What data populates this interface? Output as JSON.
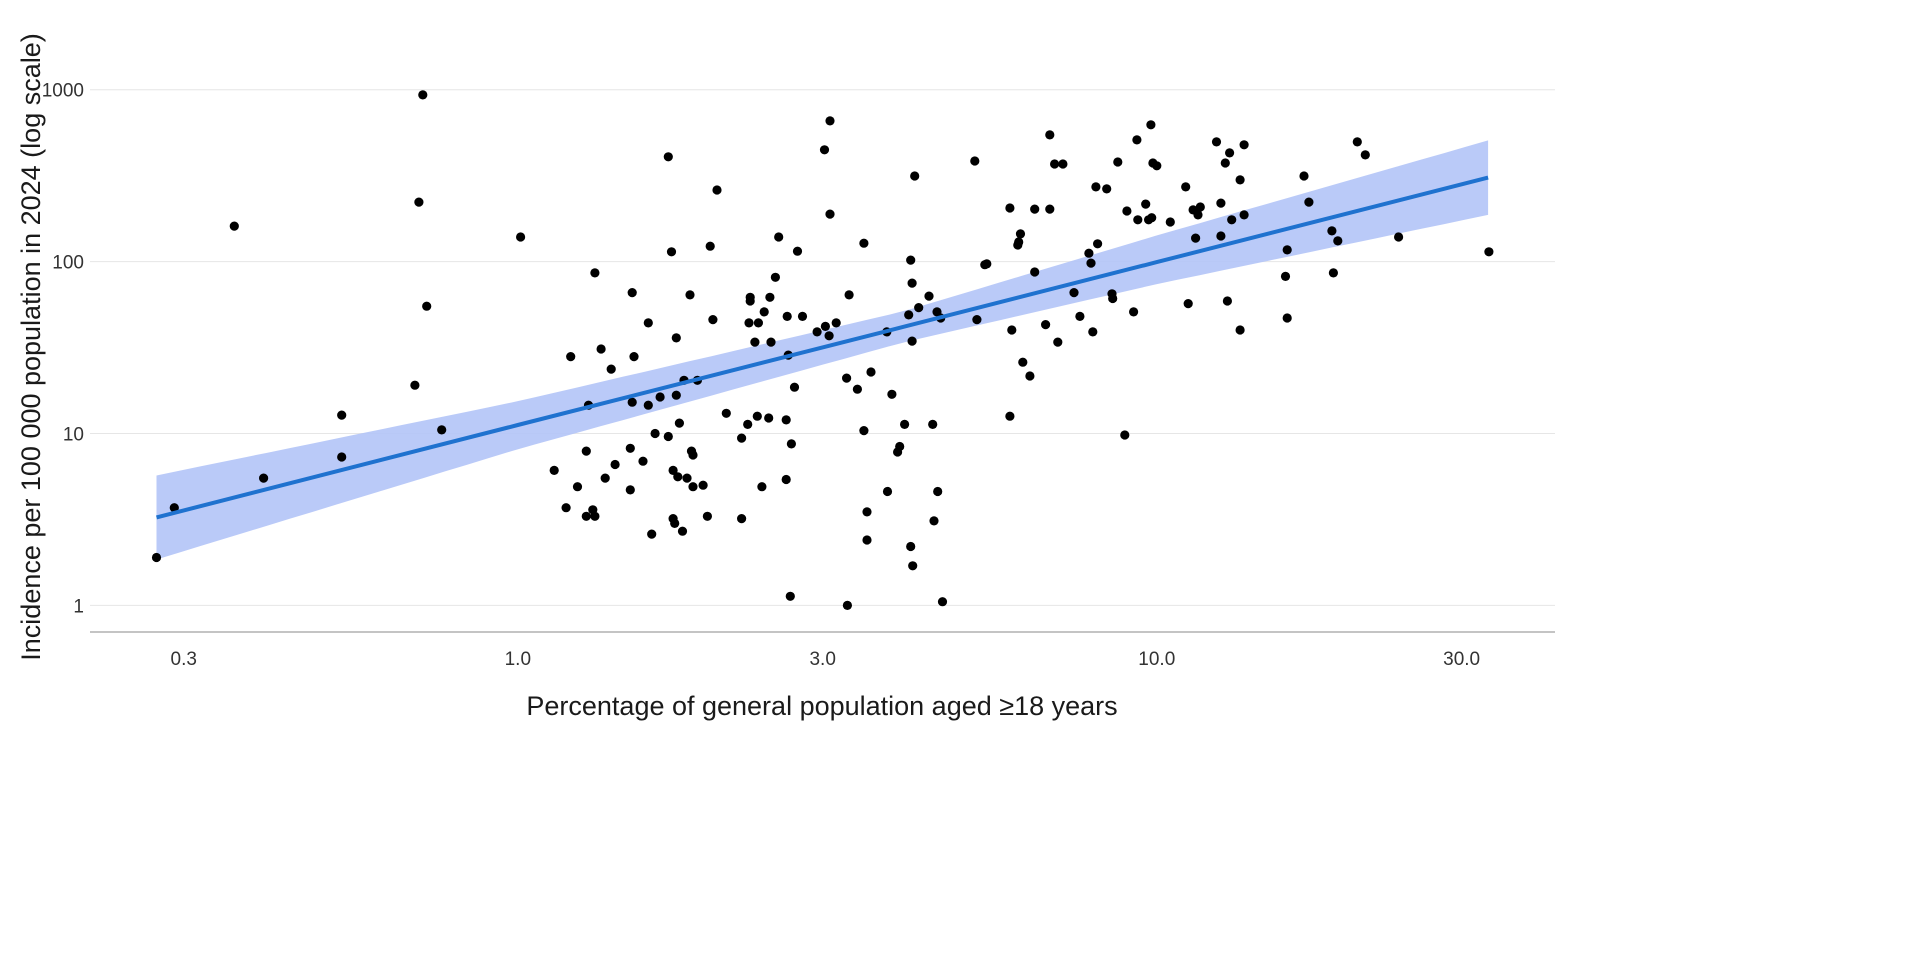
{
  "chart_data": {
    "type": "scatter",
    "title": "",
    "xlabel": "Percentage of general population aged ≥18 years",
    "ylabel": "Incidence per 100 000 population in 2024 (log scale)",
    "x_scale": "log",
    "y_scale": "log",
    "xlim": [
      0.214,
      42
    ],
    "ylim": [
      0.7,
      2000
    ],
    "x_ticks": [
      0.3,
      1.0,
      3.0,
      10.0,
      30.0
    ],
    "x_tick_labels": [
      "0.3",
      "1.0",
      "3.0",
      "10.0",
      "30.0"
    ],
    "y_ticks": [
      1,
      10,
      100,
      1000
    ],
    "y_tick_labels": [
      "1",
      "10",
      "100",
      "1000"
    ],
    "grid": "horizontal major lines",
    "legend": "none",
    "colors": {
      "points": "#000000",
      "fit_line": "#1f72cf",
      "confidence_band": "#b3c4f7",
      "grid": "#e6e6e6",
      "axis": "#b0b0b0"
    },
    "fit": {
      "model": "log-log linear regression with confidence band",
      "x": [
        0.272,
        1,
        4,
        10,
        33
      ],
      "y": [
        3.25,
        11.2,
        41.6,
        99.3,
        308
      ],
      "lower": [
        1.85,
        8.1,
        33.8,
        74,
        187
      ],
      "upper": [
        5.7,
        15.4,
        51.2,
        142,
        507
      ]
    },
    "points": [
      [
        0.272,
        1.9
      ],
      [
        0.29,
        3.7
      ],
      [
        0.36,
        161
      ],
      [
        0.4,
        5.5
      ],
      [
        0.53,
        12.8
      ],
      [
        0.53,
        7.3
      ],
      [
        0.69,
        19.1
      ],
      [
        0.7,
        222
      ],
      [
        0.71,
        933
      ],
      [
        0.72,
        55
      ],
      [
        0.76,
        10.5
      ],
      [
        1.01,
        139
      ],
      [
        1.14,
        6.1
      ],
      [
        1.19,
        3.7
      ],
      [
        1.21,
        28
      ],
      [
        1.24,
        4.9
      ],
      [
        1.28,
        7.9
      ],
      [
        1.28,
        3.3
      ],
      [
        1.29,
        14.6
      ],
      [
        1.31,
        3.6
      ],
      [
        1.32,
        3.3
      ],
      [
        1.32,
        86
      ],
      [
        1.35,
        31
      ],
      [
        1.37,
        5.5
      ],
      [
        1.4,
        23.7
      ],
      [
        1.42,
        6.6
      ],
      [
        1.5,
        8.2
      ],
      [
        1.5,
        4.7
      ],
      [
        1.51,
        15.2
      ],
      [
        1.51,
        66
      ],
      [
        1.52,
        28
      ],
      [
        1.57,
        6.9
      ],
      [
        1.6,
        44
      ],
      [
        1.6,
        14.6
      ],
      [
        1.62,
        2.6
      ],
      [
        1.64,
        10
      ],
      [
        1.67,
        16.3
      ],
      [
        1.72,
        407
      ],
      [
        1.72,
        9.6
      ],
      [
        1.74,
        114
      ],
      [
        1.75,
        6.1
      ],
      [
        1.75,
        3.2
      ],
      [
        1.76,
        3.0
      ],
      [
        1.77,
        36
      ],
      [
        1.77,
        16.7
      ],
      [
        1.78,
        5.6
      ],
      [
        1.79,
        11.5
      ],
      [
        1.81,
        2.7
      ],
      [
        1.82,
        20.4
      ],
      [
        1.84,
        5.5
      ],
      [
        1.86,
        64
      ],
      [
        1.87,
        7.9
      ],
      [
        1.88,
        4.9
      ],
      [
        1.88,
        7.5
      ],
      [
        1.91,
        20.4
      ],
      [
        1.95,
        5.0
      ],
      [
        1.98,
        3.3
      ],
      [
        2.0,
        123
      ],
      [
        2.02,
        46
      ],
      [
        2.05,
        261
      ],
      [
        2.12,
        13.1
      ],
      [
        2.24,
        9.4
      ],
      [
        2.24,
        3.2
      ],
      [
        2.29,
        11.3
      ],
      [
        2.3,
        44
      ],
      [
        2.31,
        62
      ],
      [
        2.31,
        59
      ],
      [
        2.35,
        34
      ],
      [
        2.37,
        12.6
      ],
      [
        2.38,
        44
      ],
      [
        2.41,
        4.9
      ],
      [
        2.43,
        51
      ],
      [
        2.47,
        12.3
      ],
      [
        2.48,
        62
      ],
      [
        2.49,
        34
      ],
      [
        2.53,
        81
      ],
      [
        2.56,
        139
      ],
      [
        2.63,
        12
      ],
      [
        2.64,
        48
      ],
      [
        2.63,
        5.4
      ],
      [
        2.65,
        28.6
      ],
      [
        2.68,
        8.7
      ],
      [
        2.67,
        1.13
      ],
      [
        2.71,
        18.6
      ],
      [
        2.74,
        115
      ],
      [
        2.79,
        48
      ],
      [
        2.94,
        39
      ],
      [
        3.02,
        447
      ],
      [
        3.03,
        42
      ],
      [
        3.07,
        37
      ],
      [
        3.08,
        659
      ],
      [
        3.08,
        189
      ],
      [
        3.15,
        44
      ],
      [
        3.27,
        21
      ],
      [
        3.3,
        64
      ],
      [
        3.28,
        1.0
      ],
      [
        3.4,
        18.1
      ],
      [
        3.48,
        128
      ],
      [
        3.48,
        10.4
      ],
      [
        3.52,
        3.5
      ],
      [
        3.52,
        2.4
      ],
      [
        3.57,
        22.8
      ],
      [
        3.78,
        39
      ],
      [
        3.79,
        4.6
      ],
      [
        3.85,
        16.9
      ],
      [
        3.93,
        7.8
      ],
      [
        3.96,
        8.4
      ],
      [
        4.03,
        11.3
      ],
      [
        4.09,
        49
      ],
      [
        4.12,
        2.2
      ],
      [
        4.12,
        102
      ],
      [
        4.14,
        75
      ],
      [
        4.14,
        34.5
      ],
      [
        4.15,
        1.7
      ],
      [
        4.18,
        315
      ],
      [
        4.24,
        54
      ],
      [
        4.4,
        63
      ],
      [
        4.46,
        11.3
      ],
      [
        4.48,
        3.1
      ],
      [
        4.53,
        51
      ],
      [
        4.54,
        4.6
      ],
      [
        4.59,
        47
      ],
      [
        4.62,
        1.05
      ],
      [
        5.19,
        385
      ],
      [
        5.23,
        46
      ],
      [
        5.38,
        96
      ],
      [
        5.42,
        97
      ],
      [
        5.89,
        12.6
      ],
      [
        5.89,
        205
      ],
      [
        5.93,
        40
      ],
      [
        6.06,
        125
      ],
      [
        6.08,
        130
      ],
      [
        6.12,
        145
      ],
      [
        6.17,
        26
      ],
      [
        6.33,
        21.6
      ],
      [
        6.44,
        87
      ],
      [
        6.44,
        202
      ],
      [
        6.7,
        43
      ],
      [
        6.8,
        546
      ],
      [
        6.8,
        202
      ],
      [
        6.92,
        370
      ],
      [
        7.0,
        34
      ],
      [
        7.13,
        370
      ],
      [
        7.42,
        66
      ],
      [
        7.58,
        48
      ],
      [
        7.83,
        112
      ],
      [
        7.89,
        98
      ],
      [
        7.94,
        39
      ],
      [
        8.03,
        272
      ],
      [
        8.08,
        127
      ],
      [
        8.35,
        265
      ],
      [
        8.51,
        65
      ],
      [
        8.53,
        61
      ],
      [
        8.69,
        380
      ],
      [
        8.91,
        9.8
      ],
      [
        8.98,
        197
      ],
      [
        9.2,
        51
      ],
      [
        9.31,
        511
      ],
      [
        9.34,
        175
      ],
      [
        9.61,
        216
      ],
      [
        9.71,
        175
      ],
      [
        9.79,
        625
      ],
      [
        9.82,
        180
      ],
      [
        9.86,
        375
      ],
      [
        10.0,
        361
      ],
      [
        10.5,
        170
      ],
      [
        11.1,
        272
      ],
      [
        11.2,
        57
      ],
      [
        11.4,
        200
      ],
      [
        11.5,
        137
      ],
      [
        11.6,
        187
      ],
      [
        11.7,
        208
      ],
      [
        12.4,
        497
      ],
      [
        12.6,
        141
      ],
      [
        12.6,
        219
      ],
      [
        12.8,
        375
      ],
      [
        12.9,
        59
      ],
      [
        13.0,
        429
      ],
      [
        13.1,
        175
      ],
      [
        13.5,
        40
      ],
      [
        13.5,
        299
      ],
      [
        13.7,
        478
      ],
      [
        13.7,
        187
      ],
      [
        15.9,
        82
      ],
      [
        16.0,
        117
      ],
      [
        16.0,
        47
      ],
      [
        17.0,
        315
      ],
      [
        17.3,
        222
      ],
      [
        18.8,
        151
      ],
      [
        18.9,
        86
      ],
      [
        19.2,
        132
      ],
      [
        20.6,
        497
      ],
      [
        21.2,
        418
      ],
      [
        23.9,
        139
      ],
      [
        33.1,
        114
      ]
    ]
  }
}
